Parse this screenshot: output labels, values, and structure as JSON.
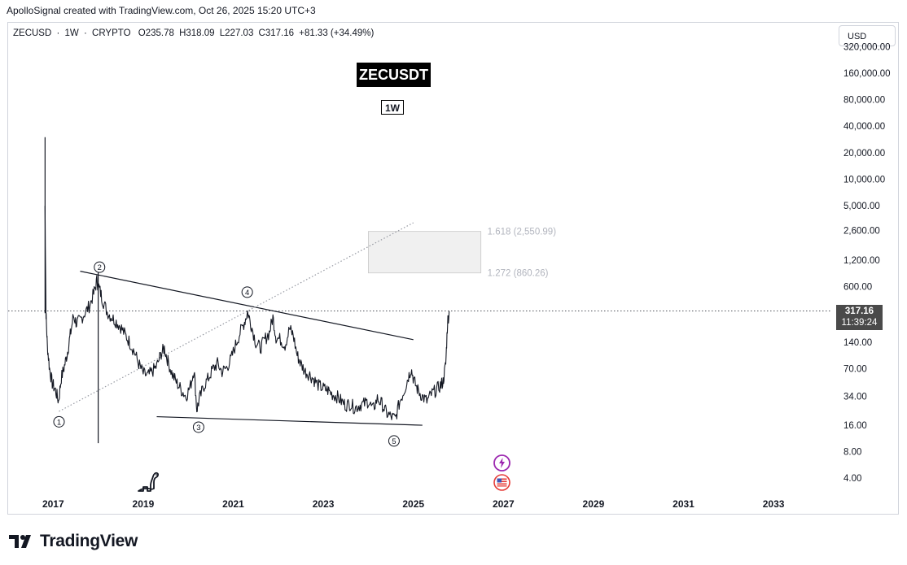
{
  "header": {
    "credit": "ApolloSignal created with TradingView.com, Oct 26, 2025 15:20 UTC+3"
  },
  "legend": {
    "symbol": "ZECUSD",
    "sep1": "·",
    "interval": "1W",
    "sep2": "·",
    "exchange": "CRYPTO",
    "open": "O235.78",
    "high": "H318.09",
    "low": "L227.03",
    "close": "C317.16",
    "change": "+81.33 (+34.49%)"
  },
  "currency_button": "USD",
  "badges": {
    "title": "ZECUSDT",
    "timeframe": "1W"
  },
  "last_price": {
    "value": "317.16",
    "countdown": "11:39:24",
    "color": "#4a4a4a"
  },
  "brand": {
    "name": "TradingView",
    "icons": [
      "tradingview-logo-icon",
      "dinosaur-icon",
      "lightning-event-icon",
      "us-flag-event-icon"
    ]
  },
  "chart_data": {
    "type": "line",
    "scale": "log",
    "ylim": [
      2.8,
      400000
    ],
    "xlim": [
      2016.0,
      2034.3
    ],
    "y_ticks": [
      {
        "value": 320000,
        "label": "320,000.00"
      },
      {
        "value": 160000,
        "label": "160,000.00"
      },
      {
        "value": 80000,
        "label": "80,000.00"
      },
      {
        "value": 40000,
        "label": "40,000.00"
      },
      {
        "value": 20000,
        "label": "20,000.00"
      },
      {
        "value": 10000,
        "label": "10,000.00"
      },
      {
        "value": 5000,
        "label": "5,000.00"
      },
      {
        "value": 2600,
        "label": "2,600.00"
      },
      {
        "value": 1200,
        "label": "1,200.00"
      },
      {
        "value": 600,
        "label": "600.00"
      },
      {
        "value": 140,
        "label": "140.00"
      },
      {
        "value": 70,
        "label": "70.00"
      },
      {
        "value": 34,
        "label": "34.00"
      },
      {
        "value": 16,
        "label": "16.00"
      },
      {
        "value": 8,
        "label": "8.00"
      },
      {
        "value": 4,
        "label": "4.00"
      }
    ],
    "x_ticks": [
      {
        "value": 2017,
        "label": "2017"
      },
      {
        "value": 2019,
        "label": "2019"
      },
      {
        "value": 2021,
        "label": "2021"
      },
      {
        "value": 2023,
        "label": "2023"
      },
      {
        "value": 2025,
        "label": "2025"
      },
      {
        "value": 2027,
        "label": "2027"
      },
      {
        "value": 2029,
        "label": "2029"
      },
      {
        "value": 2031,
        "label": "2031"
      },
      {
        "value": 2033,
        "label": "2033"
      }
    ],
    "series": [
      {
        "values": [
          {
            "x": 2016.82,
            "y": 5000
          },
          {
            "x": 2016.84,
            "y": 300
          },
          {
            "x": 2016.87,
            "y": 130
          },
          {
            "x": 2016.92,
            "y": 70
          },
          {
            "x": 2016.98,
            "y": 48
          },
          {
            "x": 2017.05,
            "y": 40
          },
          {
            "x": 2017.12,
            "y": 30
          },
          {
            "x": 2017.18,
            "y": 55
          },
          {
            "x": 2017.25,
            "y": 75
          },
          {
            "x": 2017.32,
            "y": 110
          },
          {
            "x": 2017.38,
            "y": 170
          },
          {
            "x": 2017.45,
            "y": 280
          },
          {
            "x": 2017.52,
            "y": 230
          },
          {
            "x": 2017.6,
            "y": 250
          },
          {
            "x": 2017.7,
            "y": 300
          },
          {
            "x": 2017.8,
            "y": 360
          },
          {
            "x": 2017.9,
            "y": 500
          },
          {
            "x": 2017.97,
            "y": 700
          },
          {
            "x": 2018.03,
            "y": 560
          },
          {
            "x": 2018.1,
            "y": 420
          },
          {
            "x": 2018.2,
            "y": 310
          },
          {
            "x": 2018.3,
            "y": 270
          },
          {
            "x": 2018.4,
            "y": 240
          },
          {
            "x": 2018.5,
            "y": 210
          },
          {
            "x": 2018.6,
            "y": 170
          },
          {
            "x": 2018.7,
            "y": 140
          },
          {
            "x": 2018.8,
            "y": 110
          },
          {
            "x": 2018.9,
            "y": 80
          },
          {
            "x": 2019.0,
            "y": 62
          },
          {
            "x": 2019.1,
            "y": 58
          },
          {
            "x": 2019.2,
            "y": 65
          },
          {
            "x": 2019.3,
            "y": 75
          },
          {
            "x": 2019.4,
            "y": 105
          },
          {
            "x": 2019.47,
            "y": 120
          },
          {
            "x": 2019.55,
            "y": 85
          },
          {
            "x": 2019.65,
            "y": 60
          },
          {
            "x": 2019.75,
            "y": 48
          },
          {
            "x": 2019.85,
            "y": 40
          },
          {
            "x": 2019.95,
            "y": 34
          },
          {
            "x": 2020.05,
            "y": 45
          },
          {
            "x": 2020.13,
            "y": 70
          },
          {
            "x": 2020.19,
            "y": 24
          },
          {
            "x": 2020.25,
            "y": 32
          },
          {
            "x": 2020.35,
            "y": 45
          },
          {
            "x": 2020.45,
            "y": 55
          },
          {
            "x": 2020.55,
            "y": 70
          },
          {
            "x": 2020.65,
            "y": 80
          },
          {
            "x": 2020.75,
            "y": 65
          },
          {
            "x": 2020.85,
            "y": 72
          },
          {
            "x": 2020.95,
            "y": 90
          },
          {
            "x": 2021.05,
            "y": 130
          },
          {
            "x": 2021.15,
            "y": 180
          },
          {
            "x": 2021.25,
            "y": 240
          },
          {
            "x": 2021.32,
            "y": 310
          },
          {
            "x": 2021.4,
            "y": 220
          },
          {
            "x": 2021.5,
            "y": 140
          },
          {
            "x": 2021.6,
            "y": 120
          },
          {
            "x": 2021.7,
            "y": 150
          },
          {
            "x": 2021.8,
            "y": 180
          },
          {
            "x": 2021.88,
            "y": 270
          },
          {
            "x": 2021.95,
            "y": 160
          },
          {
            "x": 2022.05,
            "y": 150
          },
          {
            "x": 2022.15,
            "y": 130
          },
          {
            "x": 2022.25,
            "y": 200
          },
          {
            "x": 2022.33,
            "y": 170
          },
          {
            "x": 2022.42,
            "y": 100
          },
          {
            "x": 2022.5,
            "y": 80
          },
          {
            "x": 2022.6,
            "y": 65
          },
          {
            "x": 2022.7,
            "y": 60
          },
          {
            "x": 2022.8,
            "y": 52
          },
          {
            "x": 2022.9,
            "y": 45
          },
          {
            "x": 2023.0,
            "y": 42
          },
          {
            "x": 2023.1,
            "y": 40
          },
          {
            "x": 2023.2,
            "y": 36
          },
          {
            "x": 2023.3,
            "y": 34
          },
          {
            "x": 2023.4,
            "y": 30
          },
          {
            "x": 2023.5,
            "y": 27
          },
          {
            "x": 2023.6,
            "y": 28
          },
          {
            "x": 2023.7,
            "y": 25
          },
          {
            "x": 2023.8,
            "y": 27
          },
          {
            "x": 2023.9,
            "y": 28
          },
          {
            "x": 2024.0,
            "y": 30
          },
          {
            "x": 2024.1,
            "y": 24
          },
          {
            "x": 2024.2,
            "y": 32
          },
          {
            "x": 2024.3,
            "y": 28
          },
          {
            "x": 2024.4,
            "y": 22
          },
          {
            "x": 2024.5,
            "y": 20
          },
          {
            "x": 2024.6,
            "y": 19
          },
          {
            "x": 2024.7,
            "y": 30
          },
          {
            "x": 2024.8,
            "y": 40
          },
          {
            "x": 2024.88,
            "y": 55
          },
          {
            "x": 2024.95,
            "y": 70
          },
          {
            "x": 2025.02,
            "y": 50
          },
          {
            "x": 2025.1,
            "y": 40
          },
          {
            "x": 2025.2,
            "y": 34
          },
          {
            "x": 2025.3,
            "y": 30
          },
          {
            "x": 2025.4,
            "y": 36
          },
          {
            "x": 2025.5,
            "y": 40
          },
          {
            "x": 2025.6,
            "y": 45
          },
          {
            "x": 2025.66,
            "y": 50
          },
          {
            "x": 2025.72,
            "y": 80
          },
          {
            "x": 2025.76,
            "y": 240
          },
          {
            "x": 2025.8,
            "y": 317
          }
        ]
      }
    ],
    "last_value": 317.16,
    "wave_labels": [
      {
        "label": "1",
        "x": 2017.13,
        "y": 17.5
      },
      {
        "label": "2",
        "x": 2018.03,
        "y": 1000
      },
      {
        "label": "3",
        "x": 2020.23,
        "y": 15.2
      },
      {
        "label": "4",
        "x": 2021.31,
        "y": 520
      },
      {
        "label": "5",
        "x": 2024.57,
        "y": 10.6
      }
    ],
    "annotations": [
      {
        "label": "1.618 (2,550.99)",
        "value": 2550.99
      },
      {
        "label": "1.272 (860.26)",
        "value": 860.26
      }
    ],
    "trendlines": [
      {
        "name": "upper-trendline",
        "x": [
          2017.6,
          2025.0
        ],
        "y": [
          900,
          150
        ]
      },
      {
        "name": "lower-trendline",
        "x": [
          2019.3,
          2025.2
        ],
        "y": [
          20,
          16
        ]
      },
      {
        "name": "dotted-projection",
        "x": [
          2017.13,
          2025.0
        ],
        "y": [
          23,
          3200
        ]
      }
    ],
    "fib_box": {
      "x": [
        2024.0,
        2026.5
      ],
      "y": [
        860.26,
        2550.99
      ]
    }
  }
}
